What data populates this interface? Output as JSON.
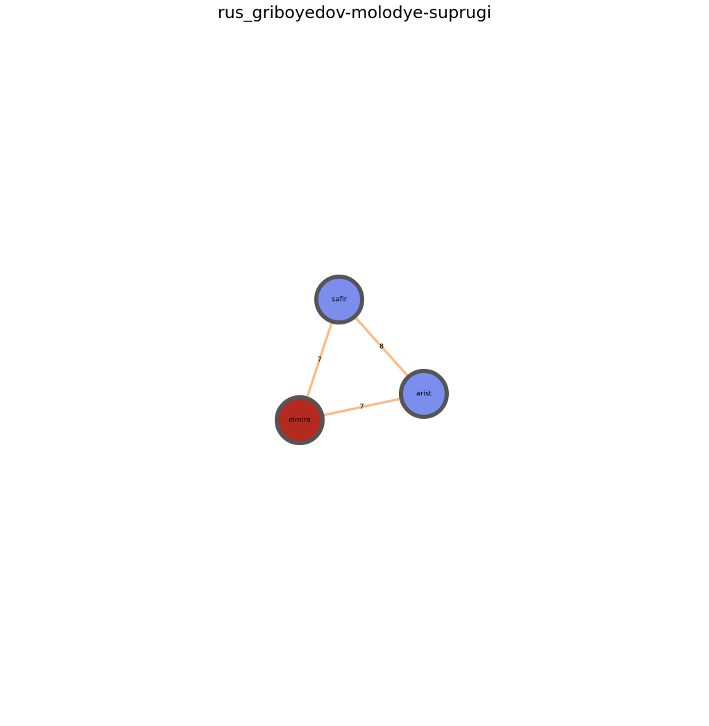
{
  "title": "rus_griboyedov-molodye-suprugi",
  "colors": {
    "edge": "#fdbb84",
    "node_stroke": "#555555",
    "node_blue": "#7b8ded",
    "node_red": "#b52a1f"
  },
  "graph": {
    "nodes": [
      {
        "id": "safir",
        "label": "safir",
        "color": "#7b8ded"
      },
      {
        "id": "arist",
        "label": "arist",
        "color": "#7b8ded"
      },
      {
        "id": "elmira",
        "label": "elmira",
        "color": "#b52a1f"
      }
    ],
    "edges": [
      {
        "source": "safir",
        "target": "arist",
        "weight": "8"
      },
      {
        "source": "safir",
        "target": "elmira",
        "weight": "7"
      },
      {
        "source": "elmira",
        "target": "arist",
        "weight": "7"
      }
    ]
  }
}
